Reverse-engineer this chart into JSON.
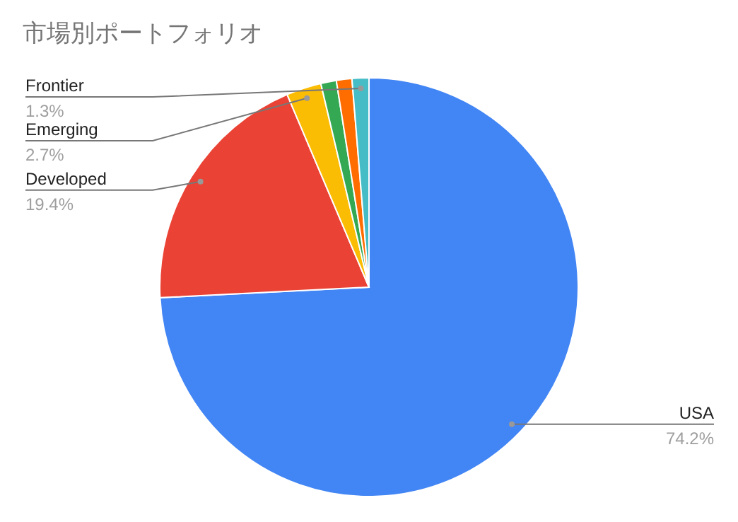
{
  "chart_data": {
    "type": "pie",
    "title": "市場別ポートフォリオ",
    "categories": [
      "USA",
      "Developed",
      "Emerging",
      null,
      null,
      "Frontier"
    ],
    "values": [
      74.2,
      19.4,
      2.7,
      1.2,
      1.2,
      1.3
    ],
    "value_labels": [
      "74.2%",
      "19.4%",
      "2.7%",
      null,
      null,
      "1.3%"
    ],
    "colors": [
      "#4285f4",
      "#ea4335",
      "#fbbc04",
      "#34a853",
      "#ff6d01",
      "#46bdc6"
    ]
  }
}
